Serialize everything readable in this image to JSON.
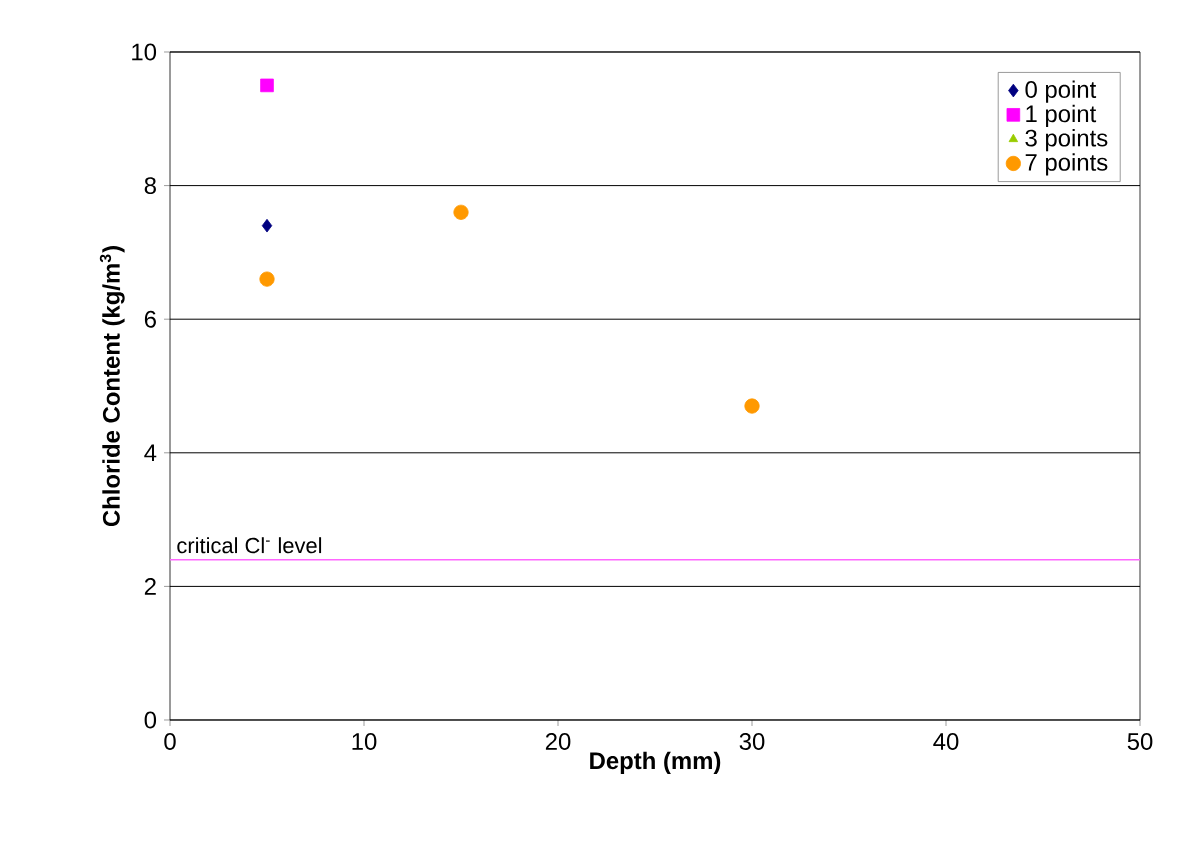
{
  "chart_data": {
    "type": "scatter",
    "xlabel": "Depth (mm)",
    "ylabel": "Chloride Content (kg/m$^{3}$)",
    "xlim": [
      0,
      50
    ],
    "xticks": [
      0,
      10,
      20,
      30,
      40,
      50
    ],
    "ylim": [
      0,
      10
    ],
    "yticks": [
      0,
      2,
      4,
      6,
      8,
      10
    ],
    "grid": "y",
    "legend": "top right",
    "series": [
      {
        "name": "0 point",
        "color": "#000080",
        "marker": "diamond",
        "x": [
          5
        ],
        "values": [
          7.4
        ]
      },
      {
        "name": "1 point",
        "color": "#ff00ff",
        "marker": "square",
        "x": [
          5
        ],
        "values": [
          9.5
        ]
      },
      {
        "name": "3 points",
        "color": "#99cc00",
        "marker": "triangle"
      },
      {
        "name": "7 points",
        "color": "#ff9900",
        "marker": "circle",
        "x": [
          5,
          15,
          30
        ],
        "values": [
          6.6,
          7.6,
          4.7
        ]
      }
    ],
    "ref_lines": [
      {
        "axis": "y",
        "value": 2.4,
        "label": "critical Cl$^{-}$ level",
        "color": "#ff66ff"
      }
    ]
  }
}
